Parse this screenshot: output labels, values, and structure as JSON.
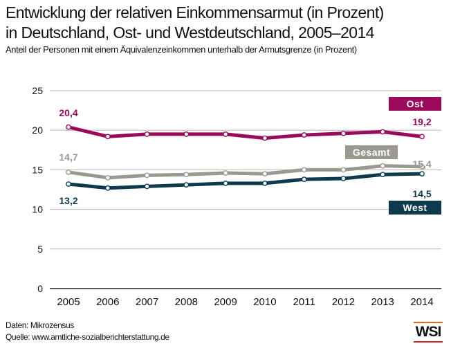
{
  "header": {
    "title_line1": "Entwicklung der relativen Einkommensarmut (in Prozent)",
    "title_line2": "in Deutschland, Ost- und Westdeutschland, 2005–2014",
    "subtitle": "Anteil der Personen mit einem Äquivalenzeinkommen unterhalb der Armutsgrenze (in Prozent)"
  },
  "footer": {
    "data_source": "Daten: Mikrozensus",
    "source": "Quelle: www.amtliche-sozialberichterstattung.de",
    "logo": "WSI"
  },
  "colors": {
    "ost": "#990a5a",
    "gesamt": "#9a988f",
    "west": "#0e3a4d",
    "grid": "#b5b5b5",
    "axis": "#555555",
    "logo_top": "#e8651a",
    "logo_bottom": "#d6242b"
  },
  "chart_data": {
    "type": "line",
    "title": "Entwicklung der relativen Einkommensarmut (in Prozent) in Deutschland, Ost- und Westdeutschland, 2005–2014",
    "subtitle": "Anteil der Personen mit einem Äquivalenzeinkommen unterhalb der Armutsgrenze (in Prozent)",
    "xlabel": "",
    "ylabel": "",
    "x": [
      "2005",
      "2006",
      "2007",
      "2008",
      "2009",
      "2010",
      "2011",
      "2012",
      "2013",
      "2014"
    ],
    "ylim": [
      0,
      25
    ],
    "yticks": [
      0,
      5,
      10,
      15,
      20,
      25
    ],
    "grid": true,
    "series": [
      {
        "name": "Ost",
        "color_key": "ost",
        "values": [
          20.4,
          19.2,
          19.5,
          19.5,
          19.5,
          19.0,
          19.4,
          19.6,
          19.8,
          19.2
        ],
        "start_label": "20,4",
        "end_label": "19,2"
      },
      {
        "name": "Gesamt",
        "color_key": "gesamt",
        "values": [
          14.7,
          14.0,
          14.3,
          14.4,
          14.6,
          14.5,
          15.0,
          15.0,
          15.5,
          15.4
        ],
        "start_label": "14,7",
        "end_label": "15,4"
      },
      {
        "name": "West",
        "color_key": "west",
        "values": [
          13.2,
          12.7,
          12.9,
          13.1,
          13.3,
          13.3,
          13.8,
          13.9,
          14.4,
          14.5
        ],
        "start_label": "13,2",
        "end_label": "14,5"
      }
    ],
    "legend": "inline-right"
  }
}
